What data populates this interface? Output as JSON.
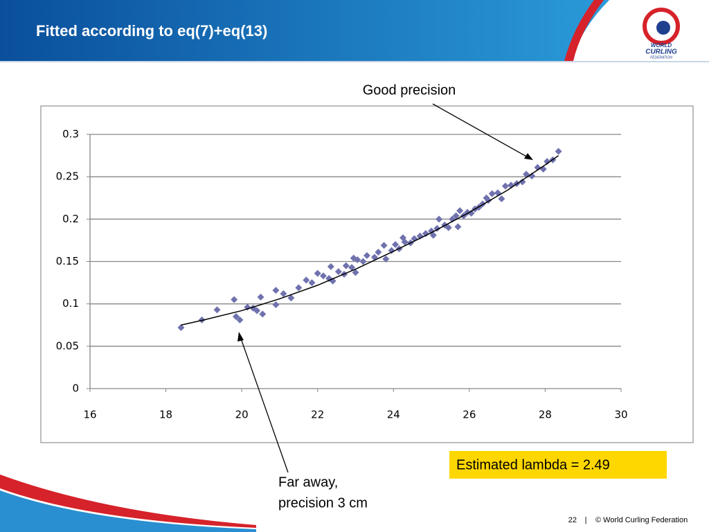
{
  "title": "Fitted according to eq(7)+eq(13)",
  "logo": {
    "line1": "WORLD",
    "line2": "CURLING",
    "line3": "FEDERATION"
  },
  "footer": {
    "page": "22",
    "separator": "|",
    "text": "© World Curling Federation"
  },
  "chart_data": {
    "type": "scatter",
    "annotations": {
      "good": "Good precision",
      "far": [
        "Far away,",
        "precision 3 cm"
      ],
      "lambda": "Estimated lambda = 2.49"
    },
    "xlim": [
      16,
      30
    ],
    "xticks": [
      16,
      18,
      20,
      22,
      24,
      26,
      28,
      30
    ],
    "ylim": [
      0,
      0.3
    ],
    "yticks": [
      0,
      0.05,
      0.1,
      0.15,
      0.2,
      0.25,
      0.3
    ],
    "grid": true,
    "series": [
      {
        "mode": "markers",
        "color": "#7072ae",
        "x": [
          18.4,
          18.95,
          19.35,
          19.8,
          19.85,
          19.95,
          20.15,
          20.3,
          20.4,
          20.5,
          20.55,
          20.9,
          20.9,
          21.1,
          21.3,
          21.5,
          21.7,
          21.85,
          22.0,
          22.15,
          22.3,
          22.35,
          22.4,
          22.55,
          22.7,
          22.75,
          22.9,
          22.95,
          23.0,
          23.05,
          23.2,
          23.3,
          23.5,
          23.6,
          23.75,
          23.8,
          23.95,
          24.05,
          24.15,
          24.25,
          24.3,
          24.45,
          24.55,
          24.7,
          24.85,
          25.0,
          25.05,
          25.15,
          25.2,
          25.35,
          25.45,
          25.55,
          25.65,
          25.7,
          25.75,
          25.85,
          25.95,
          26.05,
          26.15,
          26.25,
          26.35,
          26.45,
          26.5,
          26.6,
          26.75,
          26.85,
          26.95,
          27.1,
          27.25,
          27.4,
          27.5,
          27.65,
          27.8,
          27.95,
          28.05,
          28.2,
          28.35
        ],
        "values": [
          0.072,
          0.081,
          0.093,
          0.105,
          0.085,
          0.081,
          0.096,
          0.095,
          0.092,
          0.108,
          0.088,
          0.116,
          0.099,
          0.112,
          0.107,
          0.119,
          0.128,
          0.125,
          0.136,
          0.133,
          0.13,
          0.144,
          0.127,
          0.138,
          0.135,
          0.145,
          0.143,
          0.154,
          0.137,
          0.152,
          0.15,
          0.157,
          0.155,
          0.161,
          0.169,
          0.153,
          0.163,
          0.17,
          0.165,
          0.178,
          0.173,
          0.172,
          0.177,
          0.18,
          0.183,
          0.186,
          0.181,
          0.189,
          0.2,
          0.193,
          0.19,
          0.2,
          0.204,
          0.191,
          0.21,
          0.204,
          0.208,
          0.207,
          0.212,
          0.214,
          0.218,
          0.225,
          0.222,
          0.23,
          0.231,
          0.224,
          0.239,
          0.24,
          0.242,
          0.244,
          0.253,
          0.251,
          0.261,
          0.259,
          0.268,
          0.27,
          0.28
        ]
      },
      {
        "mode": "line",
        "color": "#000000",
        "x": [
          18.4,
          19,
          20,
          21,
          22,
          23,
          24,
          25,
          26,
          27,
          28,
          28.35
        ],
        "values": [
          0.075,
          0.081,
          0.092,
          0.106,
          0.122,
          0.141,
          0.162,
          0.184,
          0.208,
          0.234,
          0.264,
          0.275
        ]
      }
    ]
  }
}
